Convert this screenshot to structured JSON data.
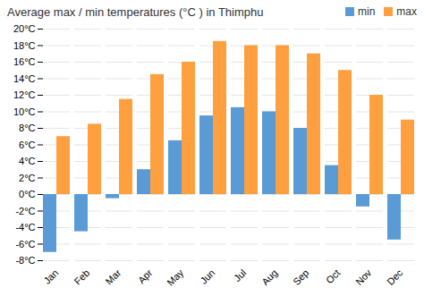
{
  "chart_data": {
    "type": "bar",
    "title": "Average max / min temperatures (°C ) in Thimphu",
    "categories": [
      "Jan",
      "Feb",
      "Mar",
      "Apr",
      "May",
      "Jun",
      "Jul",
      "Aug",
      "Sep",
      "Oct",
      "Nov",
      "Dec"
    ],
    "series": [
      {
        "name": "min",
        "color": "#5B9BD5",
        "values": [
          -7,
          -4.5,
          -0.5,
          3,
          6.5,
          9.5,
          10.5,
          10,
          8,
          3.5,
          -1.5,
          -5.5
        ]
      },
      {
        "name": "max",
        "color": "#FFA040",
        "values": [
          7,
          8.5,
          11.5,
          14.5,
          16,
          18.5,
          18,
          18,
          17,
          15,
          12,
          9
        ]
      }
    ],
    "ylim": [
      -8,
      20
    ],
    "yticks": [
      {
        "value": -8,
        "label": "-8°C"
      },
      {
        "value": -6,
        "label": "-6°C"
      },
      {
        "value": -4,
        "label": "-4°C"
      },
      {
        "value": -2,
        "label": "-2°C"
      },
      {
        "value": 0,
        "label": "0°C"
      },
      {
        "value": 2,
        "label": "2°C"
      },
      {
        "value": 4,
        "label": "4°C"
      },
      {
        "value": 6,
        "label": "6°C"
      },
      {
        "value": 8,
        "label": "8°C"
      },
      {
        "value": 10,
        "label": "10°C"
      },
      {
        "value": 12,
        "label": "12°C"
      },
      {
        "value": 14,
        "label": "14°C"
      },
      {
        "value": 16,
        "label": "16°C"
      },
      {
        "value": 18,
        "label": "18°C"
      },
      {
        "value": 20,
        "label": "20°C"
      }
    ],
    "grid": true,
    "legend": "upper right"
  }
}
